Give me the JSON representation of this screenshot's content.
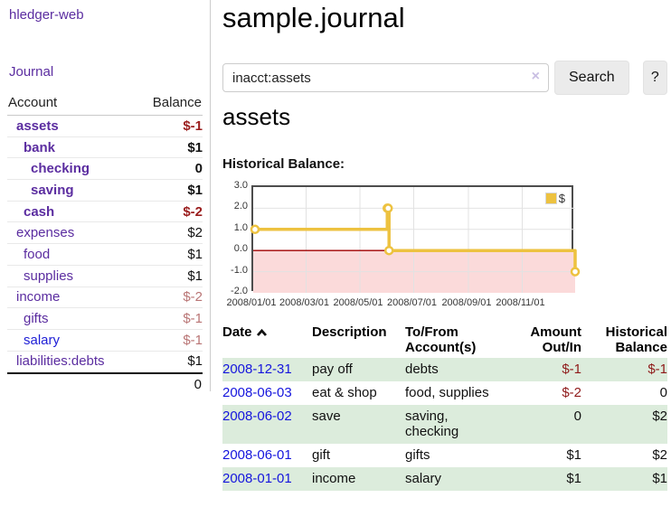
{
  "app": {
    "brand": "hledger-web",
    "nav_journal": "Journal"
  },
  "colors": {
    "accent_purple": "#5b2da0",
    "link_blue": "#1515dd",
    "negative_red": "#9a1d1d",
    "negative_soft": "#b97575",
    "stripe_green": "#dcecdc",
    "chart_gold": "#edc240",
    "chart_negative_region": "#fbdada",
    "chart_zero_line": "#a00000"
  },
  "sidebar": {
    "headers": {
      "account": "Account",
      "balance": "Balance"
    },
    "accounts": [
      {
        "name": "assets",
        "balance": "$-1",
        "indent": 1,
        "bold": true,
        "negative": true
      },
      {
        "name": "bank",
        "balance": "$1",
        "indent": 2,
        "bold": true,
        "negative": false
      },
      {
        "name": "checking",
        "balance": "0",
        "indent": 3,
        "bold": true,
        "negative": false
      },
      {
        "name": "saving",
        "balance": "$1",
        "indent": 3,
        "bold": true,
        "negative": false
      },
      {
        "name": "cash",
        "balance": "$-2",
        "indent": 2,
        "bold": true,
        "negative": true
      },
      {
        "name": "expenses",
        "balance": "$2",
        "indent": 1,
        "bold": false,
        "negative": false
      },
      {
        "name": "food",
        "balance": "$1",
        "indent": 2,
        "bold": false,
        "negative": false
      },
      {
        "name": "supplies",
        "balance": "$1",
        "indent": 2,
        "bold": false,
        "negative": false
      },
      {
        "name": "income",
        "balance": "$-2",
        "indent": 1,
        "bold": false,
        "negative": true
      },
      {
        "name": "gifts",
        "balance": "$-1",
        "indent": 2,
        "bold": false,
        "negative": true
      },
      {
        "name": "salary",
        "balance": "$-1",
        "indent": 2,
        "bold": false,
        "negative": true,
        "unvisited": true
      },
      {
        "name": "liabilities:debts",
        "balance": "$1",
        "indent": 1,
        "bold": false,
        "negative": false
      }
    ],
    "total": "0"
  },
  "header": {
    "title": "sample.journal"
  },
  "search": {
    "value": "inacct:assets",
    "clear_icon": "×",
    "button": "Search",
    "help_button": "?"
  },
  "account_page": {
    "title": "assets",
    "chart_label": "Historical Balance:"
  },
  "chart_data": {
    "type": "line",
    "step": true,
    "title": "Historical Balance",
    "series": [
      {
        "name": "$",
        "color": "#edc240",
        "points": [
          {
            "date": "2008-01-01",
            "value": 1
          },
          {
            "date": "2008-06-01",
            "value": 2
          },
          {
            "date": "2008-06-02",
            "value": 2
          },
          {
            "date": "2008-06-03",
            "value": 0
          },
          {
            "date": "2008-12-31",
            "value": -1
          }
        ]
      }
    ],
    "x_range": [
      "2008-01-01",
      "2008-12-31"
    ],
    "x_ticks": [
      "2008/01/01",
      "2008/03/01",
      "2008/05/01",
      "2008/07/01",
      "2008/09/01",
      "2008/11/01"
    ],
    "y_ticks": [
      3.0,
      2.0,
      1.0,
      0.0,
      -1.0,
      -2.0
    ],
    "ylim": [
      -2,
      3
    ],
    "grid": true,
    "legend": {
      "label": "$",
      "position": "top-right"
    }
  },
  "register": {
    "headers": {
      "date": "Date",
      "description": "Description",
      "accounts": "To/From Account(s)",
      "amount": "Amount Out/In",
      "balance": "Historical Balance"
    },
    "rows": [
      {
        "date": "2008-12-31",
        "description": "pay off",
        "accounts": "debts",
        "amount": "$-1",
        "balance": "$-1"
      },
      {
        "date": "2008-06-03",
        "description": "eat & shop",
        "accounts": "food, supplies",
        "amount": "$-2",
        "balance": "0"
      },
      {
        "date": "2008-06-02",
        "description": "save",
        "accounts": "saving, checking",
        "amount": "0",
        "balance": "$2"
      },
      {
        "date": "2008-06-01",
        "description": "gift",
        "accounts": "gifts",
        "amount": "$1",
        "balance": "$2"
      },
      {
        "date": "2008-01-01",
        "description": "income",
        "accounts": "salary",
        "amount": "$1",
        "balance": "$1"
      }
    ]
  }
}
